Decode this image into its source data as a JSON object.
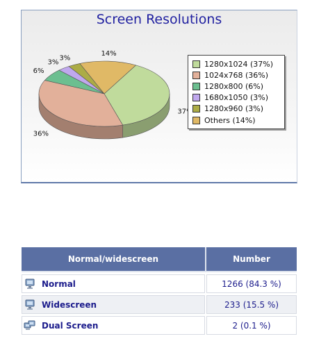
{
  "chart_data": {
    "type": "pie",
    "title": "Screen Resolutions",
    "slices": [
      {
        "label": "1280x1024",
        "percent": 37,
        "data_label": "37%",
        "legend": "1280x1024 (37%)",
        "color": "#c0db9c"
      },
      {
        "label": "1024x768",
        "percent": 36,
        "data_label": "36%",
        "legend": "1024x768 (36%)",
        "color": "#e2b09a"
      },
      {
        "label": "1280x800",
        "percent": 6,
        "data_label": "6%",
        "legend": "1280x800 (6%)",
        "color": "#6cbf90"
      },
      {
        "label": "1680x1050",
        "percent": 3,
        "data_label": "3%",
        "legend": "1680x1050 (3%)",
        "color": "#c0a8ee"
      },
      {
        "label": "1280x960",
        "percent": 3,
        "data_label": "3%",
        "legend": "1280x960 (3%)",
        "color": "#acac46"
      },
      {
        "label": "Others",
        "percent": 14,
        "data_label": "14%",
        "legend": "Others (14%)",
        "color": "#e0b966"
      }
    ],
    "legend_position": "right",
    "style": "3d"
  },
  "table": {
    "headers": [
      "Normal/widescreen",
      "Number"
    ],
    "rows": [
      {
        "label": "Normal",
        "value": "1266 (84.3 %)",
        "icon": "single-monitor-icon"
      },
      {
        "label": "Widescreen",
        "value": "233 (15.5 %)",
        "icon": "single-monitor-icon"
      },
      {
        "label": "Dual Screen",
        "value": "2 (0.1 %)",
        "icon": "dual-monitor-icon"
      }
    ]
  }
}
